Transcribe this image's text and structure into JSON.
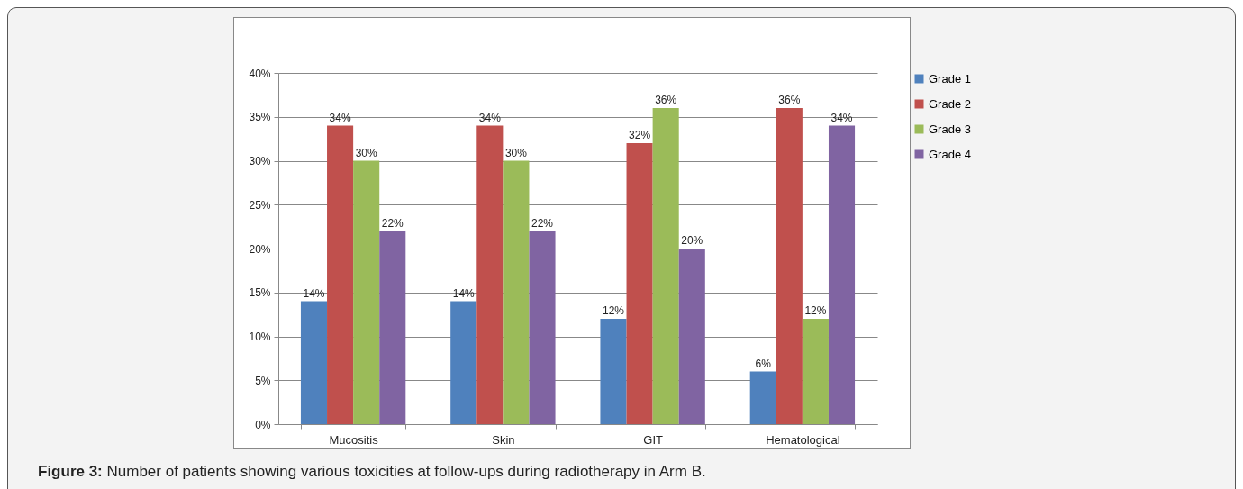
{
  "chart_data": {
    "type": "bar",
    "categories": [
      "Mucositis",
      "Skin",
      "GIT",
      "Hematological"
    ],
    "series": [
      {
        "name": "Grade 1",
        "color": "#4f81bd",
        "values": [
          14,
          14,
          12,
          6
        ],
        "value_labels": [
          "14%",
          "14%",
          "12%",
          "6%"
        ]
      },
      {
        "name": "Grade 2",
        "color": "#c0504d",
        "values": [
          34,
          34,
          32,
          36
        ],
        "value_labels": [
          "34%",
          "34%",
          "32%",
          "36%"
        ]
      },
      {
        "name": "Grade 3",
        "color": "#9bbb59",
        "values": [
          30,
          30,
          36,
          12
        ],
        "value_labels": [
          "30%",
          "30%",
          "36%",
          "12%"
        ]
      },
      {
        "name": "Grade 4",
        "color": "#8064a2",
        "values": [
          22,
          22,
          20,
          34
        ],
        "value_labels": [
          "22%",
          "22%",
          "20%",
          "34%"
        ]
      }
    ],
    "ylim": [
      0,
      40
    ],
    "yticks": [
      {
        "value": 0,
        "label": "0%"
      },
      {
        "value": 5,
        "label": "5%"
      },
      {
        "value": 10,
        "label": "10%"
      },
      {
        "value": 15,
        "label": "15%"
      },
      {
        "value": 20,
        "label": "20%"
      },
      {
        "value": 25,
        "label": "25%"
      },
      {
        "value": 30,
        "label": "30%"
      },
      {
        "value": 35,
        "label": "35%"
      },
      {
        "value": 40,
        "label": "40%"
      }
    ],
    "grid": "y",
    "legend": "right",
    "annotations": [
      "Figure 3: Number of patients showing various toxicities at follow-ups during radiotherapy in Arm B."
    ]
  }
}
